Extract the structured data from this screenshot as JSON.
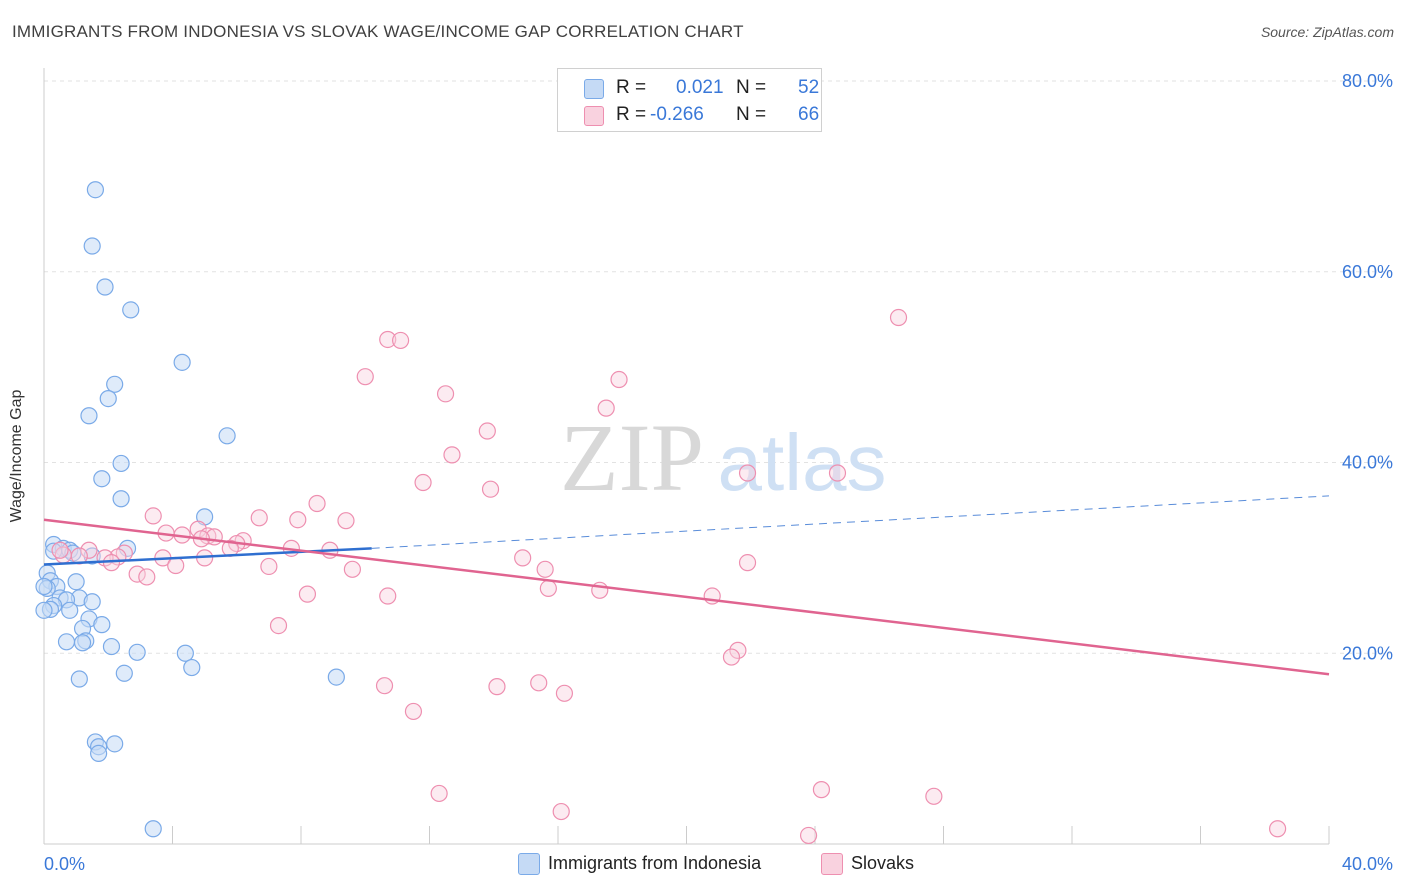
{
  "header": {
    "title": "IMMIGRANTS FROM INDONESIA VS SLOVAK WAGE/INCOME GAP CORRELATION CHART",
    "source": "Source: ZipAtlas.com"
  },
  "legend": {
    "r_label": "R =",
    "n_label": "N =",
    "series1": {
      "r": "0.021",
      "n": "52"
    },
    "series2": {
      "r": "-0.266",
      "n": "66"
    }
  },
  "watermark": {
    "zip": "ZIP",
    "atlas": "atlas"
  },
  "chart_data": {
    "type": "scatter",
    "title": "IMMIGRANTS FROM INDONESIA VS SLOVAK WAGE/INCOME GAP CORRELATION CHART",
    "xlabel": "",
    "ylabel": "Wage/Income Gap",
    "xlim": [
      0,
      40
    ],
    "ylim": [
      0,
      80
    ],
    "x_tick_labels": [
      "0.0%",
      "40.0%"
    ],
    "y_ticks": [
      20,
      40,
      60,
      80
    ],
    "y_tick_labels": [
      "20.0%",
      "40.0%",
      "60.0%",
      "80.0%"
    ],
    "grid": true,
    "legend_position": "top-center",
    "colors": {
      "series1": "#7aaae8",
      "series1_fill": "#c5daf5",
      "series1_line": "#2f6fd0",
      "series2": "#ee8fb0",
      "series2_fill": "#f9d2df",
      "series2_line": "#e06490"
    },
    "series": [
      {
        "name": "Immigrants from Indonesia",
        "r": 0.021,
        "n": 52,
        "trend": {
          "x0": 0,
          "y0": 29.3,
          "x1": 10.2,
          "y1": 31.0,
          "dashed_to_x": 40,
          "dashed_to_y": 36.5
        },
        "points": [
          [
            1.6,
            68.6
          ],
          [
            1.5,
            62.7
          ],
          [
            1.9,
            58.4
          ],
          [
            2.7,
            56.0
          ],
          [
            4.3,
            50.5
          ],
          [
            2.2,
            48.2
          ],
          [
            2.0,
            46.7
          ],
          [
            1.4,
            44.9
          ],
          [
            5.7,
            42.8
          ],
          [
            2.4,
            39.9
          ],
          [
            1.8,
            38.3
          ],
          [
            2.4,
            36.2
          ],
          [
            5.0,
            34.3
          ],
          [
            0.3,
            31.4
          ],
          [
            0.6,
            31.0
          ],
          [
            0.8,
            30.8
          ],
          [
            0.3,
            30.7
          ],
          [
            0.9,
            30.5
          ],
          [
            2.6,
            31.0
          ],
          [
            1.5,
            30.2
          ],
          [
            0.1,
            28.4
          ],
          [
            0.2,
            27.6
          ],
          [
            1.0,
            27.5
          ],
          [
            0.4,
            27.0
          ],
          [
            0.1,
            26.8
          ],
          [
            0.5,
            25.8
          ],
          [
            1.1,
            25.8
          ],
          [
            1.5,
            25.4
          ],
          [
            0.7,
            25.6
          ],
          [
            0.3,
            25.0
          ],
          [
            0.2,
            24.6
          ],
          [
            0.8,
            24.5
          ],
          [
            0.0,
            24.5
          ],
          [
            1.4,
            23.6
          ],
          [
            1.8,
            23.0
          ],
          [
            1.2,
            22.6
          ],
          [
            0.7,
            21.2
          ],
          [
            1.3,
            21.3
          ],
          [
            1.2,
            21.1
          ],
          [
            2.1,
            20.7
          ],
          [
            2.9,
            20.1
          ],
          [
            4.4,
            20.0
          ],
          [
            4.6,
            18.5
          ],
          [
            2.5,
            17.9
          ],
          [
            1.1,
            17.3
          ],
          [
            9.1,
            17.5
          ],
          [
            1.6,
            10.7
          ],
          [
            1.7,
            10.2
          ],
          [
            2.2,
            10.5
          ],
          [
            1.7,
            9.5
          ],
          [
            3.4,
            1.6
          ],
          [
            0.0,
            27.0
          ]
        ]
      },
      {
        "name": "Slovaks",
        "r": -0.266,
        "n": 66,
        "trend": {
          "x0": 0,
          "y0": 34.0,
          "x1": 40,
          "y1": 17.8
        },
        "points": [
          [
            26.6,
            55.2
          ],
          [
            10.7,
            52.9
          ],
          [
            11.1,
            52.8
          ],
          [
            10.0,
            49.0
          ],
          [
            17.9,
            48.7
          ],
          [
            12.5,
            47.2
          ],
          [
            17.5,
            45.7
          ],
          [
            13.8,
            43.3
          ],
          [
            12.7,
            40.8
          ],
          [
            21.9,
            38.9
          ],
          [
            24.7,
            38.9
          ],
          [
            11.8,
            37.9
          ],
          [
            13.9,
            37.2
          ],
          [
            8.5,
            35.7
          ],
          [
            3.4,
            34.4
          ],
          [
            6.7,
            34.2
          ],
          [
            7.9,
            34.0
          ],
          [
            9.4,
            33.9
          ],
          [
            4.8,
            33.0
          ],
          [
            3.8,
            32.6
          ],
          [
            4.3,
            32.4
          ],
          [
            5.1,
            32.3
          ],
          [
            5.3,
            32.2
          ],
          [
            6.2,
            31.8
          ],
          [
            4.9,
            32.0
          ],
          [
            6.0,
            31.5
          ],
          [
            5.8,
            31.0
          ],
          [
            7.7,
            31.0
          ],
          [
            8.9,
            30.8
          ],
          [
            2.5,
            30.5
          ],
          [
            1.4,
            30.8
          ],
          [
            0.6,
            30.3
          ],
          [
            2.3,
            30.1
          ],
          [
            5.0,
            30.0
          ],
          [
            3.7,
            30.0
          ],
          [
            1.9,
            30.0
          ],
          [
            1.1,
            30.2
          ],
          [
            2.1,
            29.5
          ],
          [
            14.9,
            30.0
          ],
          [
            21.9,
            29.5
          ],
          [
            4.1,
            29.2
          ],
          [
            7.0,
            29.1
          ],
          [
            9.6,
            28.8
          ],
          [
            15.6,
            28.8
          ],
          [
            2.9,
            28.3
          ],
          [
            3.2,
            28.0
          ],
          [
            15.7,
            26.8
          ],
          [
            17.3,
            26.6
          ],
          [
            8.2,
            26.2
          ],
          [
            10.7,
            26.0
          ],
          [
            20.8,
            26.0
          ],
          [
            7.3,
            22.9
          ],
          [
            21.6,
            20.3
          ],
          [
            21.4,
            19.6
          ],
          [
            14.1,
            16.5
          ],
          [
            10.6,
            16.6
          ],
          [
            15.4,
            16.9
          ],
          [
            16.2,
            15.8
          ],
          [
            11.5,
            13.9
          ],
          [
            12.3,
            5.3
          ],
          [
            24.2,
            5.7
          ],
          [
            27.7,
            5.0
          ],
          [
            16.1,
            3.4
          ],
          [
            23.8,
            0.9
          ],
          [
            38.4,
            1.6
          ],
          [
            0.5,
            30.8
          ]
        ]
      }
    ]
  },
  "bottom_legend": {
    "series1_label": "Immigrants from Indonesia",
    "series2_label": "Slovaks"
  }
}
